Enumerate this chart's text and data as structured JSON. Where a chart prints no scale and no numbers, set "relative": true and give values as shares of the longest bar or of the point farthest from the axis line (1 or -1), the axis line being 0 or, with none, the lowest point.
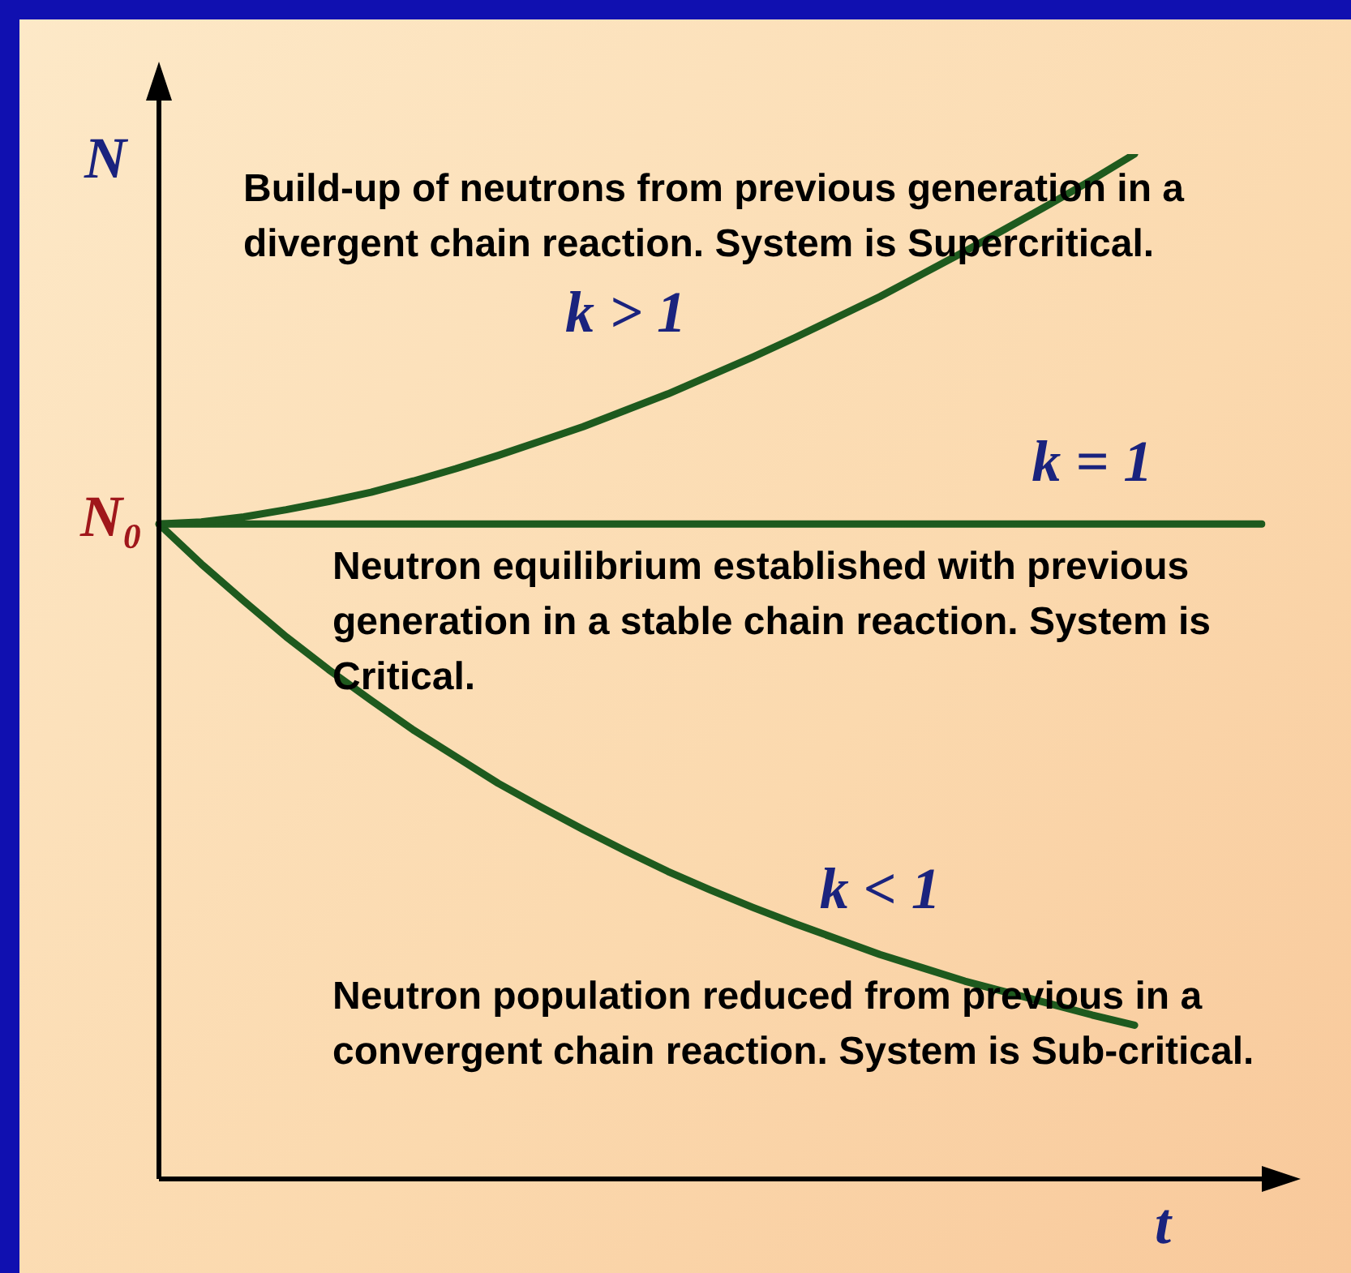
{
  "chart_data": {
    "type": "line",
    "relative": true,
    "xlabel": "t",
    "ylabel": "N",
    "categories": [
      null,
      null,
      null,
      null,
      null,
      null,
      null,
      null,
      null,
      null,
      null,
      null,
      null,
      null,
      null,
      null,
      null,
      null,
      null,
      null,
      null,
      null,
      null,
      null,
      null,
      null,
      null
    ],
    "series": [
      {
        "name": "k > 1",
        "color": "#1e5a1e",
        "values": [
          0.639,
          0.641,
          0.646,
          0.653,
          0.661,
          0.67,
          0.681,
          0.693,
          0.706,
          0.72,
          0.734,
          0.75,
          0.766,
          0.784,
          0.802,
          0.821,
          0.841,
          0.861,
          0.883,
          0.905,
          0.928,
          0.951,
          0.975,
          1.0,
          null,
          null,
          null
        ]
      },
      {
        "name": "k = 1",
        "color": "#1e5a1e",
        "values": [
          0.639,
          0.639,
          0.639,
          0.639,
          0.639,
          0.639,
          0.639,
          0.639,
          0.639,
          0.639,
          0.639,
          0.639,
          0.639,
          0.639,
          0.639,
          0.639,
          0.639,
          0.639,
          0.639,
          0.639,
          0.639,
          0.639,
          0.639,
          0.639,
          0.639,
          0.639,
          0.639
        ]
      },
      {
        "name": "k < 1",
        "color": "#1e5a1e",
        "values": [
          0.639,
          0.6,
          0.564,
          0.529,
          0.497,
          0.467,
          0.438,
          0.412,
          0.386,
          0.363,
          0.341,
          0.32,
          0.3,
          0.282,
          0.265,
          0.249,
          0.234,
          0.219,
          0.206,
          0.193,
          0.182,
          0.171,
          0.16,
          0.15,
          null,
          null,
          null
        ]
      }
    ],
    "annotations": [
      "N₀",
      "Build-up of neutrons from previous generation in a divergent chain reaction. System is Supercritical.",
      "Neutron equilibrium established with previous generation in a stable chain reaction. System is Critical.",
      "Neutron population reduced from previous in a convergent chain reaction. System is Sub-critical."
    ],
    "marker": "none",
    "line_style": "solid"
  }
}
